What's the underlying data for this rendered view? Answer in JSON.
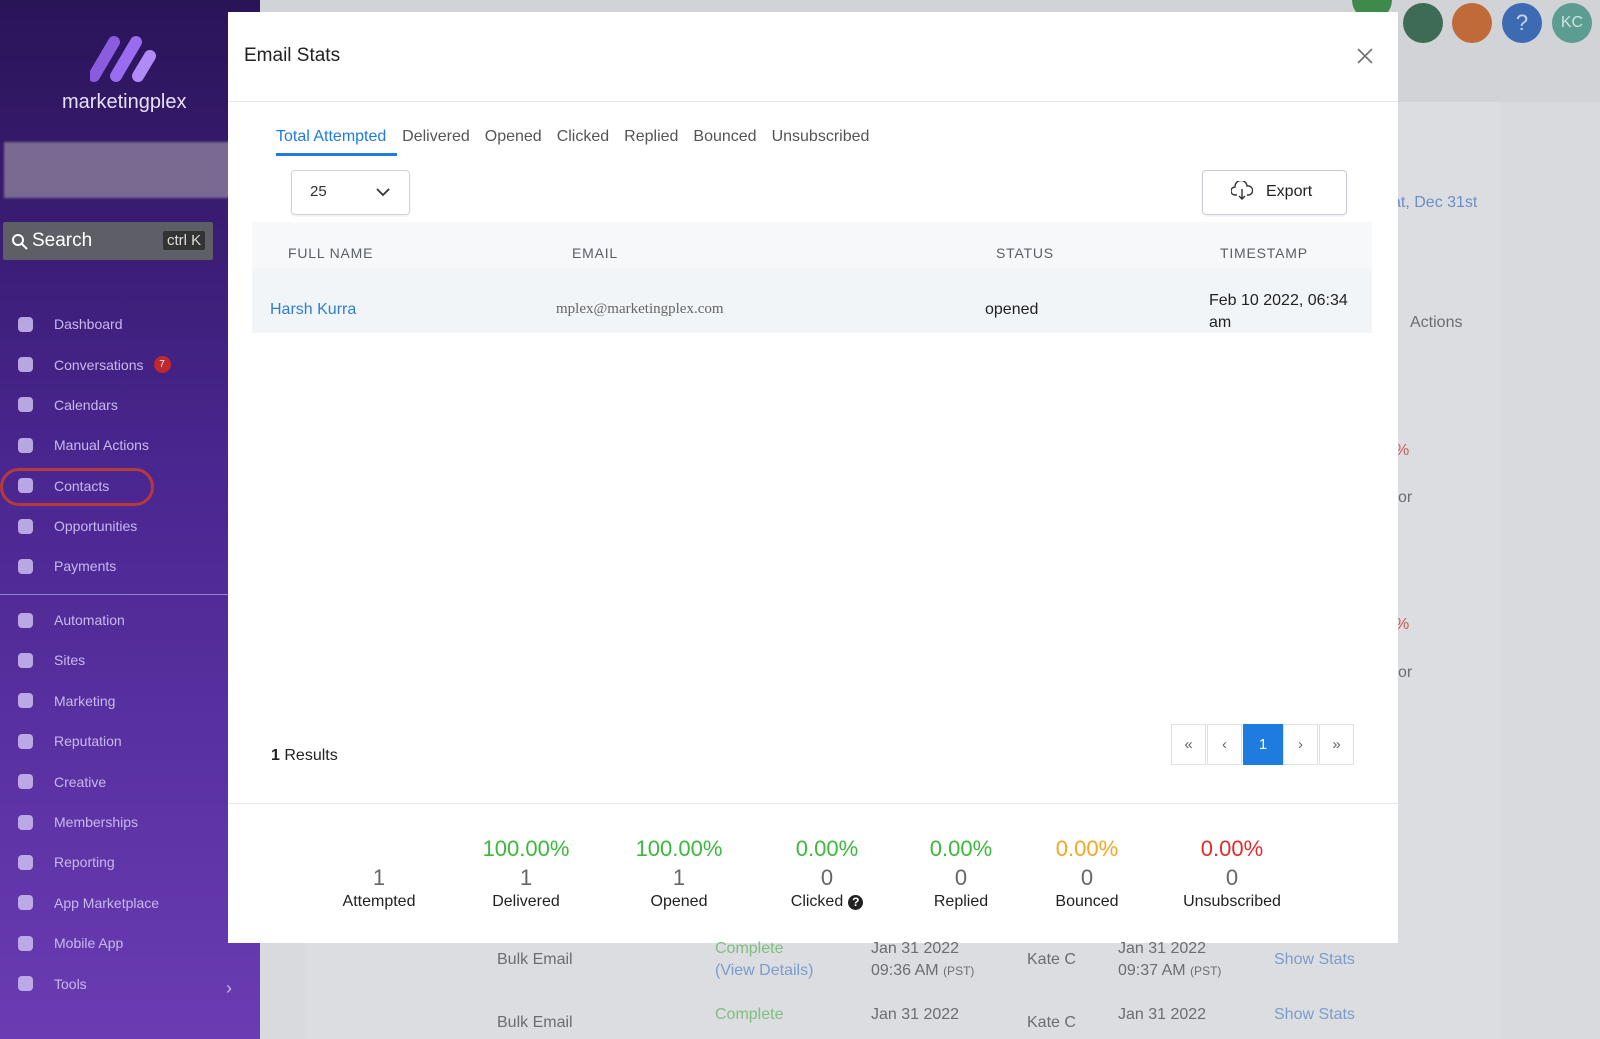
{
  "sidebar": {
    "brand": "marketingplex",
    "search": "Search",
    "shortcut": "ctrl K",
    "nav": [
      {
        "label": "Dashboard"
      },
      {
        "label": "Conversations",
        "badge": "7"
      },
      {
        "label": "Calendars"
      },
      {
        "label": "Manual Actions"
      },
      {
        "label": "Contacts"
      },
      {
        "label": "Opportunities"
      },
      {
        "label": "Payments"
      }
    ],
    "nav2": [
      {
        "label": "Automation"
      },
      {
        "label": "Sites"
      },
      {
        "label": "Marketing"
      },
      {
        "label": "Reputation"
      },
      {
        "label": "Creative"
      },
      {
        "label": "Memberships"
      },
      {
        "label": "Reporting"
      },
      {
        "label": "App Marketplace"
      },
      {
        "label": "Mobile App"
      },
      {
        "label": "Tools"
      }
    ]
  },
  "topbar": {
    "avatar": "KC"
  },
  "background": {
    "date_link": "at, Dec 31st",
    "actions_header": "Actions",
    "pct_1": "%",
    "pct_2": "%",
    "or_1": "or",
    "or_2": "or",
    "rows": [
      {
        "type": "Bulk Email",
        "status": "Complete",
        "details": "(View Details)",
        "start_date": "Jan 31 2022",
        "start_time": "09:36 AM",
        "start_tz": "(PST)",
        "user": "Kate C",
        "end_date": "Jan 31 2022",
        "end_time": "09:37 AM",
        "end_tz": "(PST)",
        "action": "Show Stats"
      },
      {
        "type": "Bulk Email",
        "status": "Complete",
        "start_date": "Jan 31 2022",
        "user": "Kate C",
        "end_date": "Jan 31 2022",
        "action": "Show Stats"
      }
    ]
  },
  "modal": {
    "title": "Email Stats",
    "tabs": [
      "Total Attempted",
      "Delivered",
      "Opened",
      "Clicked",
      "Replied",
      "Bounced",
      "Unsubscribed"
    ],
    "page_size": "25",
    "export": "Export",
    "table": {
      "headers": [
        "FULL NAME",
        "EMAIL",
        "STATUS",
        "TIMESTAMP"
      ],
      "rows": [
        [
          "Harsh Kurra",
          "mplex@marketingplex.com",
          "opened",
          "Feb 10 2022, 06:34 am"
        ]
      ]
    },
    "results_count": "1",
    "results_label": "Results",
    "pagination": [
      "«",
      "‹",
      "1",
      "›",
      "»"
    ],
    "stats": [
      {
        "number": "1",
        "label": "Attempted"
      },
      {
        "percent": "100.00%",
        "number": "1",
        "label": "Delivered",
        "color": "#3cb93c"
      },
      {
        "percent": "100.00%",
        "number": "1",
        "label": "Opened",
        "color": "#3cb93c"
      },
      {
        "percent": "0.00%",
        "number": "0",
        "label": "Clicked",
        "color": "#3cb93c"
      },
      {
        "percent": "0.00%",
        "number": "0",
        "label": "Replied",
        "color": "#3cb93c"
      },
      {
        "percent": "0.00%",
        "number": "0",
        "label": "Bounced",
        "color": "#f5a623"
      },
      {
        "percent": "0.00%",
        "number": "0",
        "label": "Unsubscribed",
        "color": "#e02b2b"
      }
    ]
  }
}
